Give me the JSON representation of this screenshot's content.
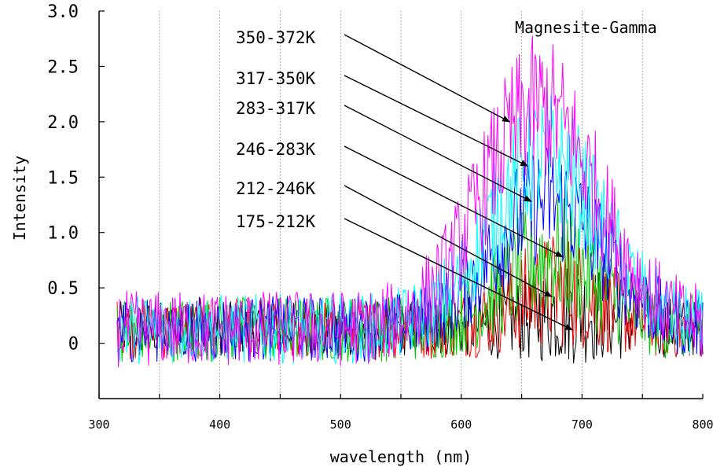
{
  "chart_data": {
    "type": "line",
    "title": "Magnesite-Gamma",
    "xlabel": "wavelength (nm)",
    "ylabel": "Intensity",
    "xlim": [
      300,
      800
    ],
    "ylim": [
      -0.5,
      3.0
    ],
    "x_ticks": [
      "300",
      "400",
      "500",
      "600",
      "700",
      "800"
    ],
    "y_ticks": [
      "0",
      "0.5",
      "1.0",
      "1.5",
      "2.0",
      "2.5",
      "3.0"
    ],
    "grid": "vertical dotted every 50 nm",
    "x_range": [
      315,
      800
    ],
    "series": [
      {
        "name": "350-372K",
        "color": "#ff00ff",
        "peak_x": 665,
        "peak_y": 2.0,
        "width": 48,
        "noise": 0.35,
        "arrow_to": [
          640,
          2.0
        ]
      },
      {
        "name": "317-350K",
        "color": "#00ffff",
        "peak_x": 670,
        "peak_y": 1.55,
        "width": 46,
        "noise": 0.32,
        "arrow_to": [
          655,
          1.6
        ]
      },
      {
        "name": "283-317K",
        "color": "#0000ff",
        "peak_x": 672,
        "peak_y": 1.15,
        "width": 45,
        "noise": 0.3,
        "arrow_to": [
          658,
          1.28
        ]
      },
      {
        "name": "246-283K",
        "color": "#00cc00",
        "peak_x": 675,
        "peak_y": 0.65,
        "width": 40,
        "noise": 0.3,
        "arrow_to": [
          684,
          0.78
        ]
      },
      {
        "name": "212-246K",
        "color": "#ff0000",
        "peak_x": 680,
        "peak_y": 0.35,
        "width": 38,
        "noise": 0.28,
        "arrow_to": [
          675,
          0.42
        ]
      },
      {
        "name": "175-212K",
        "color": "#000000",
        "peak_x": 690,
        "peak_y": 0.15,
        "width": 40,
        "noise": 0.25,
        "arrow_to": [
          692,
          0.12
        ]
      }
    ]
  }
}
